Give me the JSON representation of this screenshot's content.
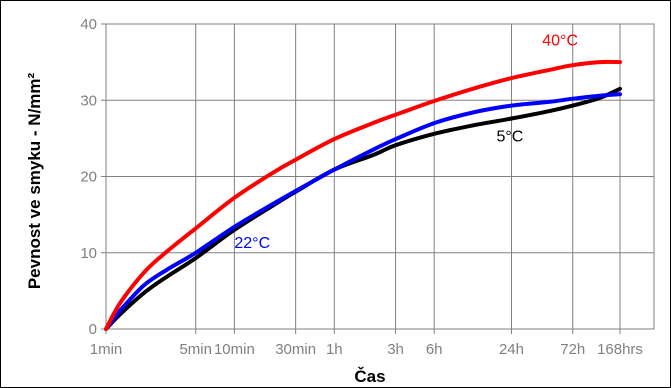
{
  "chart_data": {
    "type": "line",
    "title": "",
    "xlabel": "Čas",
    "ylabel": "Pevnost ve smyku - N/mm²",
    "ylim": [
      0,
      40
    ],
    "yticks": [
      0,
      10,
      20,
      30,
      40
    ],
    "x_scale": "log (minutes)",
    "xticks": [
      {
        "label": "1min",
        "minutes": 1
      },
      {
        "label": "5min",
        "minutes": 5
      },
      {
        "label": "10min",
        "minutes": 10
      },
      {
        "label": "30min",
        "minutes": 30
      },
      {
        "label": "1h",
        "minutes": 60
      },
      {
        "label": "3h",
        "minutes": 180
      },
      {
        "label": "6h",
        "minutes": 360
      },
      {
        "label": "24h",
        "minutes": 1440
      },
      {
        "label": "72h",
        "minutes": 4320
      },
      {
        "label": "168hrs",
        "minutes": 10080
      }
    ],
    "grid": true,
    "series": [
      {
        "name": "40°C",
        "color": "#ff0000",
        "points": [
          [
            1,
            0
          ],
          [
            1.3,
            3.5
          ],
          [
            2,
            7.5
          ],
          [
            3,
            10.2
          ],
          [
            5,
            13.2
          ],
          [
            10,
            17.2
          ],
          [
            20,
            20.5
          ],
          [
            30,
            22.2
          ],
          [
            60,
            24.9
          ],
          [
            120,
            27
          ],
          [
            180,
            28.1
          ],
          [
            360,
            29.9
          ],
          [
            720,
            31.5
          ],
          [
            1440,
            32.9
          ],
          [
            2880,
            34
          ],
          [
            4320,
            34.6
          ],
          [
            7000,
            35
          ],
          [
            10080,
            35
          ]
        ]
      },
      {
        "name": "22°C",
        "color": "#0000ff",
        "points": [
          [
            1,
            0
          ],
          [
            1.3,
            2.5
          ],
          [
            2,
            5.8
          ],
          [
            3,
            7.8
          ],
          [
            5,
            10
          ],
          [
            10,
            13.4
          ],
          [
            20,
            16.4
          ],
          [
            30,
            18.1
          ],
          [
            60,
            20.9
          ],
          [
            120,
            23.5
          ],
          [
            180,
            24.9
          ],
          [
            360,
            27
          ],
          [
            720,
            28.4
          ],
          [
            1440,
            29.3
          ],
          [
            2880,
            29.8
          ],
          [
            4320,
            30.2
          ],
          [
            7000,
            30.6
          ],
          [
            10080,
            30.8
          ]
        ]
      },
      {
        "name": "5°C",
        "color": "#000000",
        "points": [
          [
            1,
            0
          ],
          [
            1.3,
            2
          ],
          [
            2,
            4.8
          ],
          [
            3,
            6.9
          ],
          [
            5,
            9.3
          ],
          [
            10,
            13
          ],
          [
            20,
            16.2
          ],
          [
            30,
            18
          ],
          [
            60,
            20.9
          ],
          [
            120,
            22.8
          ],
          [
            180,
            24.1
          ],
          [
            360,
            25.6
          ],
          [
            720,
            26.7
          ],
          [
            1440,
            27.6
          ],
          [
            2880,
            28.6
          ],
          [
            4320,
            29.3
          ],
          [
            7000,
            30.3
          ],
          [
            10080,
            31.5
          ]
        ]
      }
    ],
    "annotations": [
      {
        "text": "40°C",
        "series": "40°C"
      },
      {
        "text": "22°C",
        "series": "22°C"
      },
      {
        "text": "5°C",
        "series": "5°C"
      }
    ]
  }
}
